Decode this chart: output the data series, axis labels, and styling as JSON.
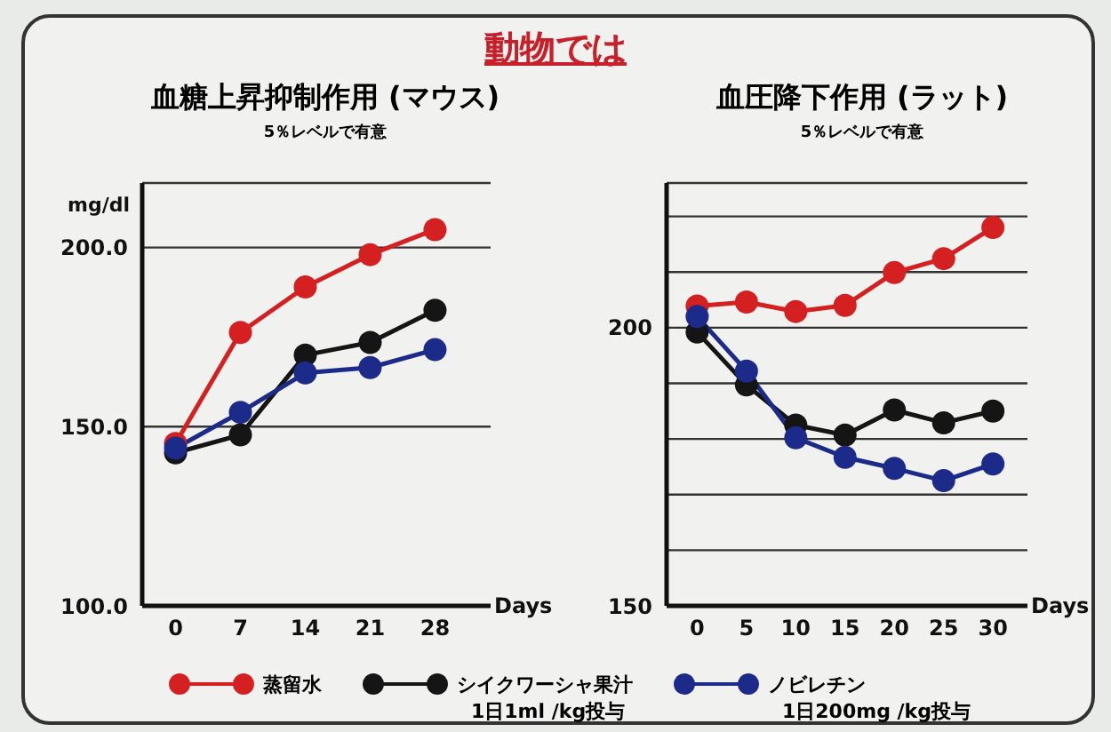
{
  "chart_data": [
    {
      "type": "line",
      "title": "血糖上昇抑制作用 (マウス)",
      "subtitle": "5％レベルで有意",
      "annotations": [
        "動物では"
      ],
      "xlabel": "Days",
      "ylabel": "mg/dl",
      "x": [
        0,
        7,
        14,
        21,
        28
      ],
      "xlim": [
        -3.6,
        34
      ],
      "xticks": [
        0,
        7,
        14,
        21,
        28
      ],
      "ylim": [
        100,
        218
      ],
      "yticks": [
        {
          "value": 100,
          "label": "100.0"
        },
        {
          "value": 150,
          "label": "150.0"
        },
        {
          "value": 200,
          "label": "200.0"
        }
      ],
      "grid": "y",
      "legend": "bottom",
      "marker": "circle",
      "line_style": "solid",
      "series": [
        {
          "name": "蒸留水",
          "color": "#d42020",
          "values": [
            145.3,
            176.3,
            189,
            198,
            205
          ]
        },
        {
          "name": "シイクワーシャ果汁\n1日1ml /kg投与",
          "color": "#151515",
          "values": [
            142.7,
            147.7,
            170,
            173.5,
            182.5
          ]
        },
        {
          "name": "ノビレチン\n1日200mg /kg投与",
          "color": "#1c2a8a",
          "values": [
            144,
            154,
            165,
            166.5,
            171.5
          ]
        }
      ]
    },
    {
      "type": "line",
      "title": "血圧降下作用 (ラット)",
      "subtitle": "5％レベルで有意",
      "xlabel": "Days",
      "x": [
        0,
        5,
        10,
        15,
        20,
        25,
        30
      ],
      "xlim": [
        -3.1,
        33.5
      ],
      "xticks": [
        0,
        5,
        10,
        15,
        20,
        25,
        30
      ],
      "ylim": [
        150,
        226
      ],
      "yticks": [
        150,
        {
          "value": 160,
          "label": null
        },
        {
          "value": 170,
          "label": null
        },
        {
          "value": 180,
          "label": null
        },
        {
          "value": 190,
          "label": null
        },
        200,
        {
          "value": 210,
          "label": null
        },
        {
          "value": 220,
          "label": null
        }
      ],
      "grid": "y",
      "marker": "circle",
      "line_style": "solid",
      "series": [
        {
          "color": "#d42020",
          "values": [
            203.9,
            204.6,
            202.9,
            204,
            209.9,
            212.4,
            218
          ]
        },
        {
          "color": "#151515",
          "values": [
            199.2,
            189.7,
            182.5,
            180.7,
            185.2,
            182.9,
            185
          ]
        },
        {
          "color": "#1c2a8a",
          "values": [
            202,
            192.2,
            180.2,
            176.7,
            174.7,
            172.5,
            175.5
          ]
        }
      ]
    }
  ]
}
